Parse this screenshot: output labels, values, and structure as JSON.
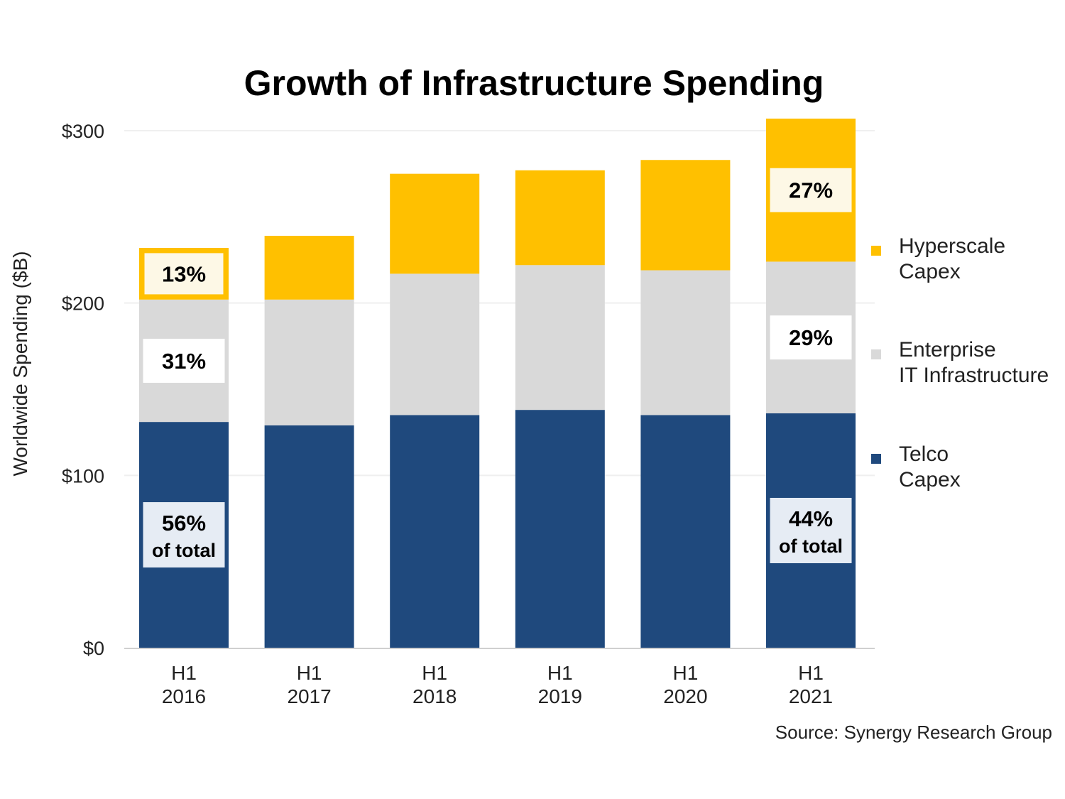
{
  "chart_data": {
    "type": "bar",
    "stacked": true,
    "title": "Growth of Infrastructure Spending",
    "ylabel": "Worldwide Spending ($B)",
    "xlabel": "",
    "ylim": [
      0,
      300
    ],
    "yticks": [
      0,
      100,
      200,
      300
    ],
    "ytick_labels": [
      "$0",
      "$100",
      "$200",
      "$300"
    ],
    "grid": true,
    "legend_position": "right",
    "categories": [
      {
        "line1": "H1",
        "line2": "2016"
      },
      {
        "line1": "H1",
        "line2": "2017"
      },
      {
        "line1": "H1",
        "line2": "2018"
      },
      {
        "line1": "H1",
        "line2": "2019"
      },
      {
        "line1": "H1",
        "line2": "2020"
      },
      {
        "line1": "H1",
        "line2": "2021"
      }
    ],
    "series": [
      {
        "name_line1": "Telco",
        "name_line2": "Capex",
        "color": "#1f497d",
        "values": [
          131,
          129,
          135,
          138,
          135,
          136
        ]
      },
      {
        "name_line1": "Enterprise",
        "name_line2": "IT Infrastructure",
        "color": "#d9d9d9",
        "values": [
          71,
          73,
          82,
          84,
          84,
          88
        ]
      },
      {
        "name_line1": "Hyperscale",
        "name_line2": "Capex",
        "color": "#ffc000",
        "values": [
          30,
          37,
          58,
          55,
          64,
          83
        ]
      }
    ],
    "annotations": [
      {
        "category": 0,
        "series": 2,
        "text": "13%",
        "sub": "",
        "box_fill": "#fdf8e6",
        "box_stroke": "#ffc000"
      },
      {
        "category": 0,
        "series": 1,
        "text": "31%",
        "sub": "",
        "box_fill": "#ffffff",
        "box_stroke": ""
      },
      {
        "category": 0,
        "series": 0,
        "text": "56%",
        "sub": "of total",
        "box_fill": "#e6ecf4",
        "box_stroke": ""
      },
      {
        "category": 5,
        "series": 2,
        "text": "27%",
        "sub": "",
        "box_fill": "#fdf8e6",
        "box_stroke": ""
      },
      {
        "category": 5,
        "series": 1,
        "text": "29%",
        "sub": "",
        "box_fill": "#ffffff",
        "box_stroke": ""
      },
      {
        "category": 5,
        "series": 0,
        "text": "44%",
        "sub": "of total",
        "box_fill": "#e6ecf4",
        "box_stroke": ""
      }
    ],
    "source": "Source: Synergy Research Group"
  }
}
